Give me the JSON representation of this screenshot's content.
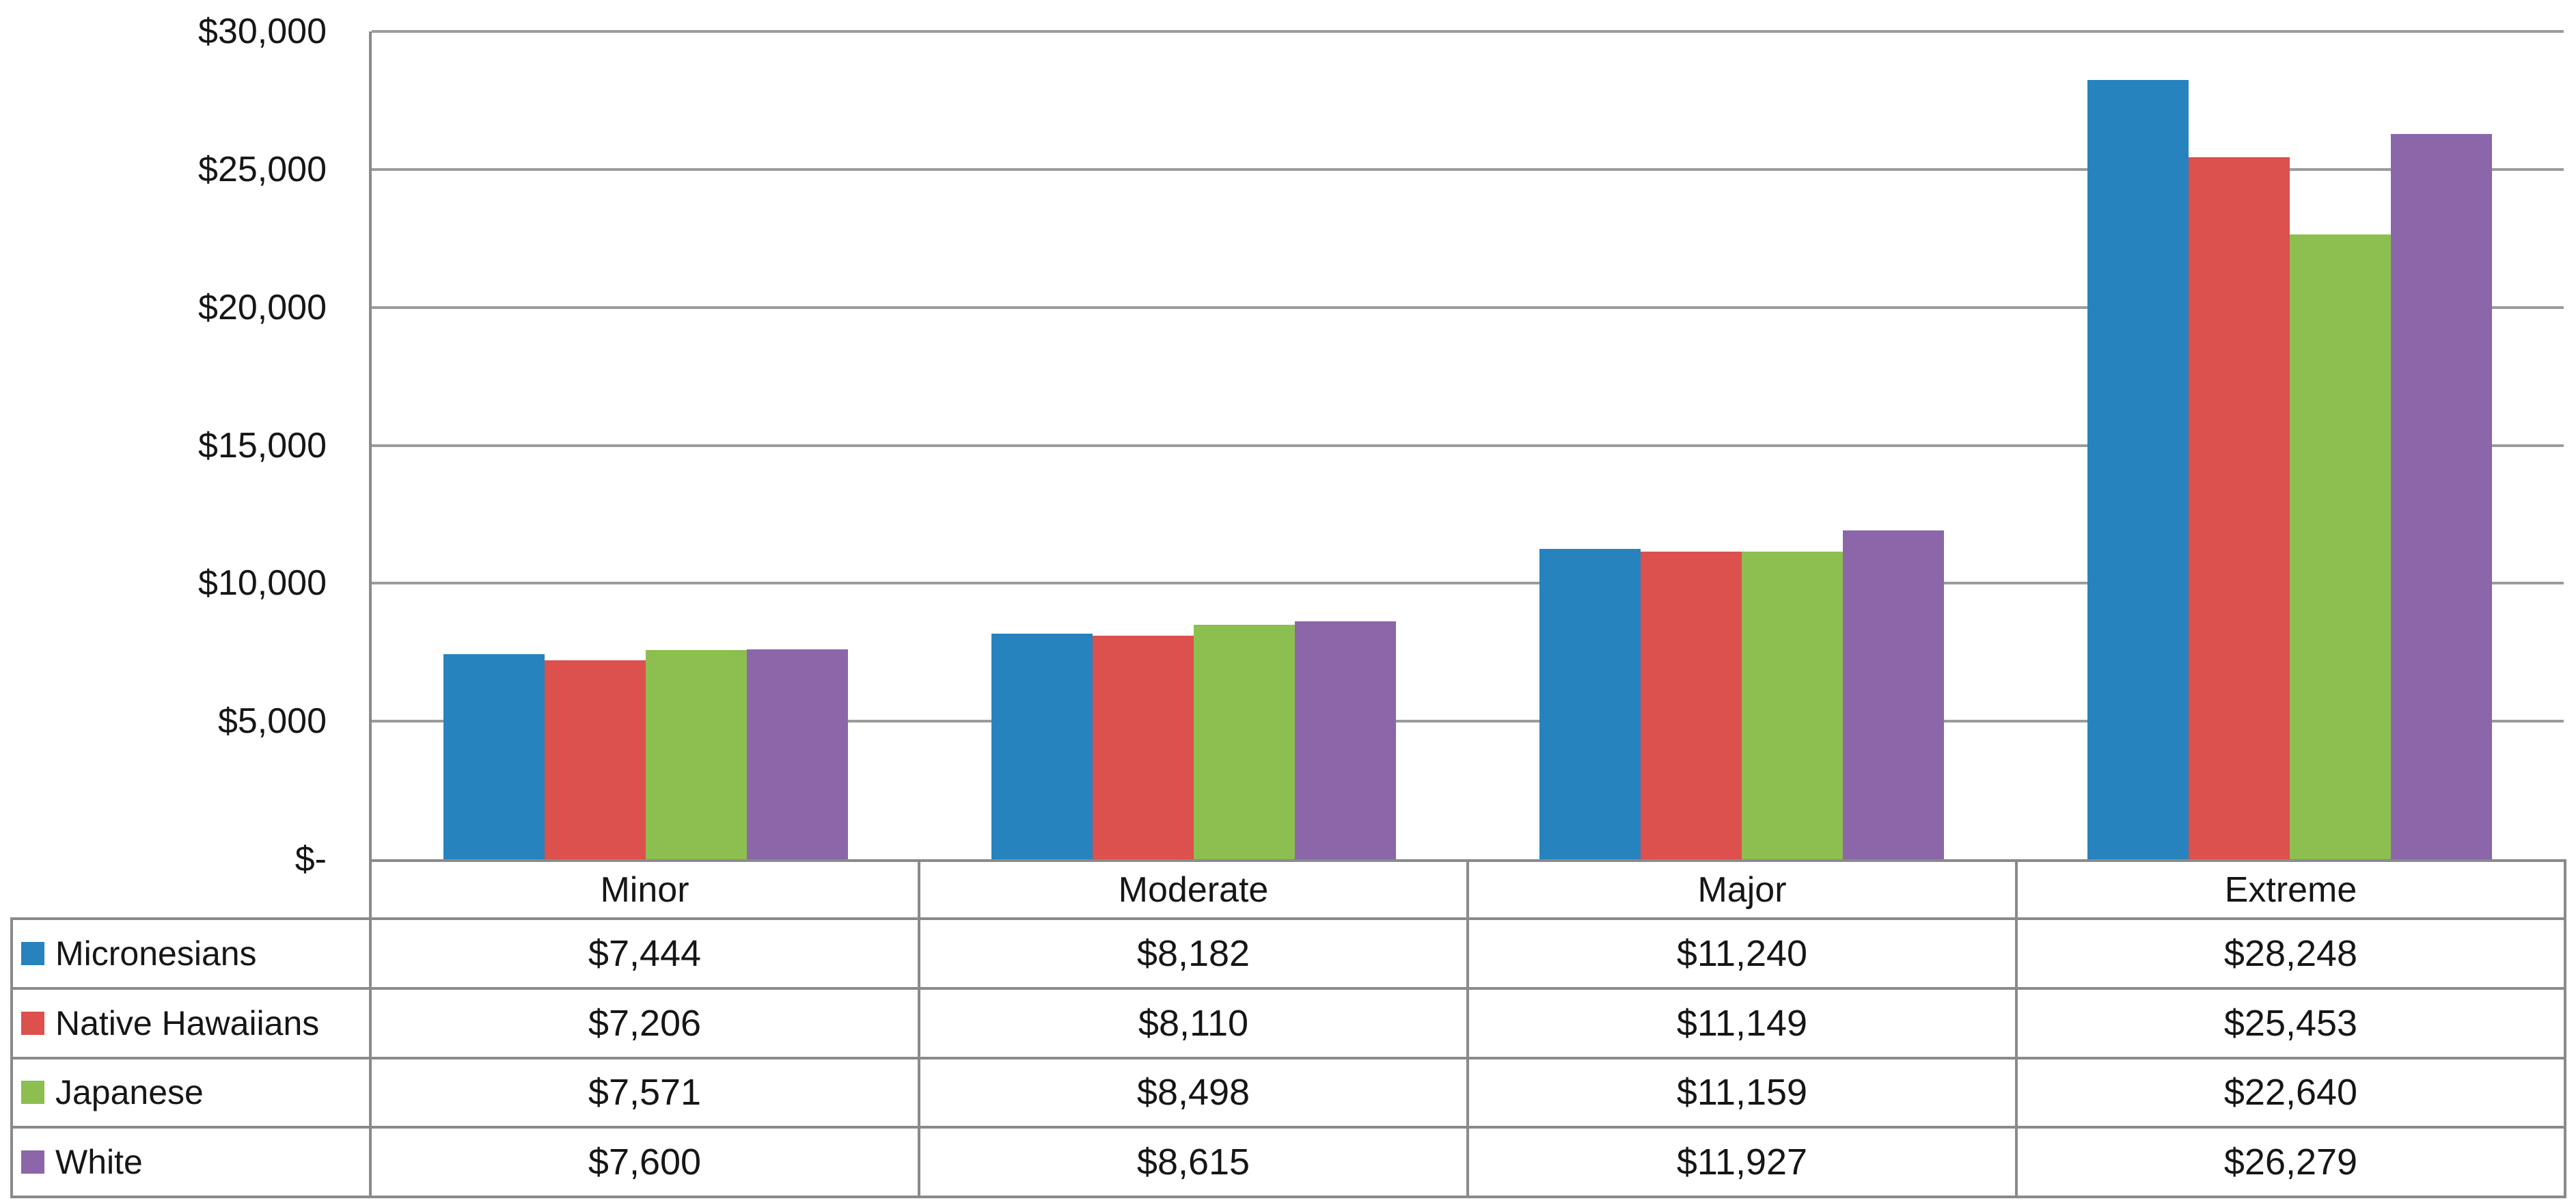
{
  "chart_data": {
    "type": "bar",
    "title": "",
    "xlabel": "",
    "ylabel": "",
    "categories": [
      "Minor",
      "Moderate",
      "Major",
      "Extreme"
    ],
    "series": [
      {
        "name": "Micronesians",
        "color": "#2783BE",
        "values": [
          7444,
          8182,
          11240,
          28248
        ],
        "labels": [
          "$7,444",
          "$8,182",
          "$11,240",
          "$28,248"
        ]
      },
      {
        "name": "Native Hawaiians",
        "color": "#DC504E",
        "values": [
          7206,
          8110,
          11149,
          25453
        ],
        "labels": [
          "$7,206",
          "$8,110",
          "$11,149",
          "$25,453"
        ]
      },
      {
        "name": "Japanese",
        "color": "#8CBE50",
        "values": [
          7571,
          8498,
          11159,
          22640
        ],
        "labels": [
          "$7,571",
          "$8,498",
          "$11,159",
          "$22,640"
        ]
      },
      {
        "name": "White",
        "color": "#8B66A9",
        "values": [
          7600,
          8615,
          11927,
          26279
        ],
        "labels": [
          "$7,600",
          "$8,615",
          "$11,927",
          "$26,279"
        ]
      }
    ],
    "y_axis": {
      "min": 0,
      "max": 30000,
      "step": 5000,
      "tick_labels": [
        "$30,000",
        "$25,000",
        "$20,000",
        "$15,000",
        "$10,000",
        "$5,000",
        "$-"
      ]
    },
    "grid": true,
    "legend_position": "table-left-column"
  }
}
